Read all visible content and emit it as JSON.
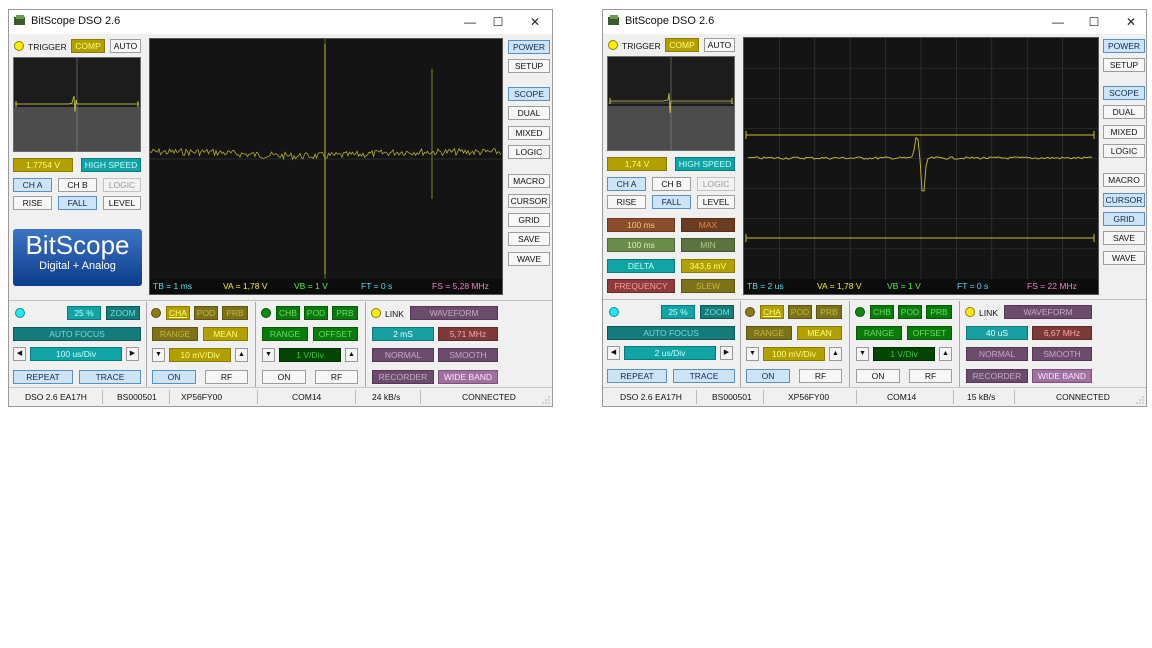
{
  "windows": [
    {
      "title": "BitScope DSO 2.6",
      "trigger": {
        "label": "TRIGGER",
        "comp": "COMP",
        "auto": "AUTO",
        "voltage": "1,7754 V",
        "speed": "HIGH SPEED",
        "ch_a": "CH A",
        "ch_b": "CH B",
        "logic": "LOGIC",
        "rise": "RISE",
        "fall": "FALL",
        "level": "LEVEL"
      },
      "logo": {
        "line1": "BitScope",
        "line2": "Digital + Analog"
      },
      "measure": null,
      "side": [
        "POWER",
        "SETUP",
        "SCOPE",
        "DUAL",
        "MIXED",
        "LOGIC",
        "MACRO",
        "CURSOR",
        "GRID",
        "SAVE",
        "WAVE"
      ],
      "scope_info": {
        "tb": "TB = 1 ms",
        "va": "VA = 1,78 V",
        "vb": "VB = 1 V",
        "ft": "FT = 0 s",
        "fs": "FS = 5,28 MHz"
      },
      "timebase": {
        "zoom_pct": "25 %",
        "zoom": "ZOOM",
        "autofocus": "AUTO FOCUS",
        "value": "100 us/Div",
        "repeat": "REPEAT",
        "trace": "TRACE"
      },
      "cha": {
        "cha": "CHA",
        "pod": "POD",
        "prb": "PRB",
        "range": "RANGE",
        "mean": "MEAN",
        "value": "10 mV/Div",
        "on": "ON",
        "rf": "RF"
      },
      "chb": {
        "chb": "CHB",
        "pod": "POD",
        "prb": "PRB",
        "range": "RANGE",
        "offset": "OFFSET",
        "value": "1 V/Div",
        "on": "ON",
        "rf": "RF"
      },
      "link": {
        "link": "LINK",
        "waveform": "WAVEFORM",
        "period": "2 mS",
        "freq": "5,71 MHz",
        "normal": "NORMAL",
        "smooth": "SMOOTH",
        "recorder": "RECORDER",
        "wideband": "WIDE BAND"
      },
      "status": [
        "DSO 2.6 EA17H",
        "BS000501",
        "XP56FY00",
        "COM14",
        "24 kB/s",
        "CONNECTED"
      ]
    },
    {
      "title": "BitScope DSO 2.6",
      "trigger": {
        "label": "TRIGGER",
        "comp": "COMP",
        "auto": "AUTO",
        "voltage": "1,74 V",
        "speed": "HIGH SPEED",
        "ch_a": "CH A",
        "ch_b": "CH B",
        "logic": "LOGIC",
        "rise": "RISE",
        "fall": "FALL",
        "level": "LEVEL"
      },
      "logo": null,
      "measure": {
        "t1": "100 ms",
        "max": "MAX",
        "t2": "100 ms",
        "min": "MIN",
        "delta": "DELTA",
        "delta_value": "343,6 mV",
        "frequency": "FREQUENCY",
        "slew": "SLEW"
      },
      "side": [
        "POWER",
        "SETUP",
        "SCOPE",
        "DUAL",
        "MIXED",
        "LOGIC",
        "MACRO",
        "CURSOR",
        "GRID",
        "SAVE",
        "WAVE"
      ],
      "scope_info": {
        "tb": "TB = 2 us",
        "va": "VA = 1,78 V",
        "vb": "VB = 1 V",
        "ft": "FT = 0 s",
        "fs": "FS = 22 MHz"
      },
      "timebase": {
        "zoom_pct": "25 %",
        "zoom": "ZOOM",
        "autofocus": "AUTO FOCUS",
        "value": "2 us/Div",
        "repeat": "REPEAT",
        "trace": "TRACE"
      },
      "cha": {
        "cha": "CHA",
        "pod": "POD",
        "prb": "PRB",
        "range": "RANGE",
        "mean": "MEAN",
        "value": "100 mV/Div",
        "on": "ON",
        "rf": "RF"
      },
      "chb": {
        "chb": "CHB",
        "pod": "POD",
        "prb": "PRB",
        "range": "RANGE",
        "offset": "OFFSET",
        "value": "1 V/Div",
        "on": "ON",
        "rf": "RF"
      },
      "link": {
        "link": "LINK",
        "waveform": "WAVEFORM",
        "period": "40 uS",
        "freq": "6,67 MHz",
        "normal": "NORMAL",
        "smooth": "SMOOTH",
        "recorder": "RECORDER",
        "wideband": "WIDE BAND"
      },
      "status": [
        "DSO 2.6 EA17H",
        "BS000501",
        "XP56FY00",
        "COM14",
        "15 kB/s",
        "CONNECTED"
      ]
    }
  ],
  "icons": {
    "minimize": "—",
    "maximize": "☐",
    "close": "✕",
    "arrow_left": "◀",
    "arrow_right": "▶",
    "arrow_down": "▼",
    "arrow_up": "▲"
  }
}
